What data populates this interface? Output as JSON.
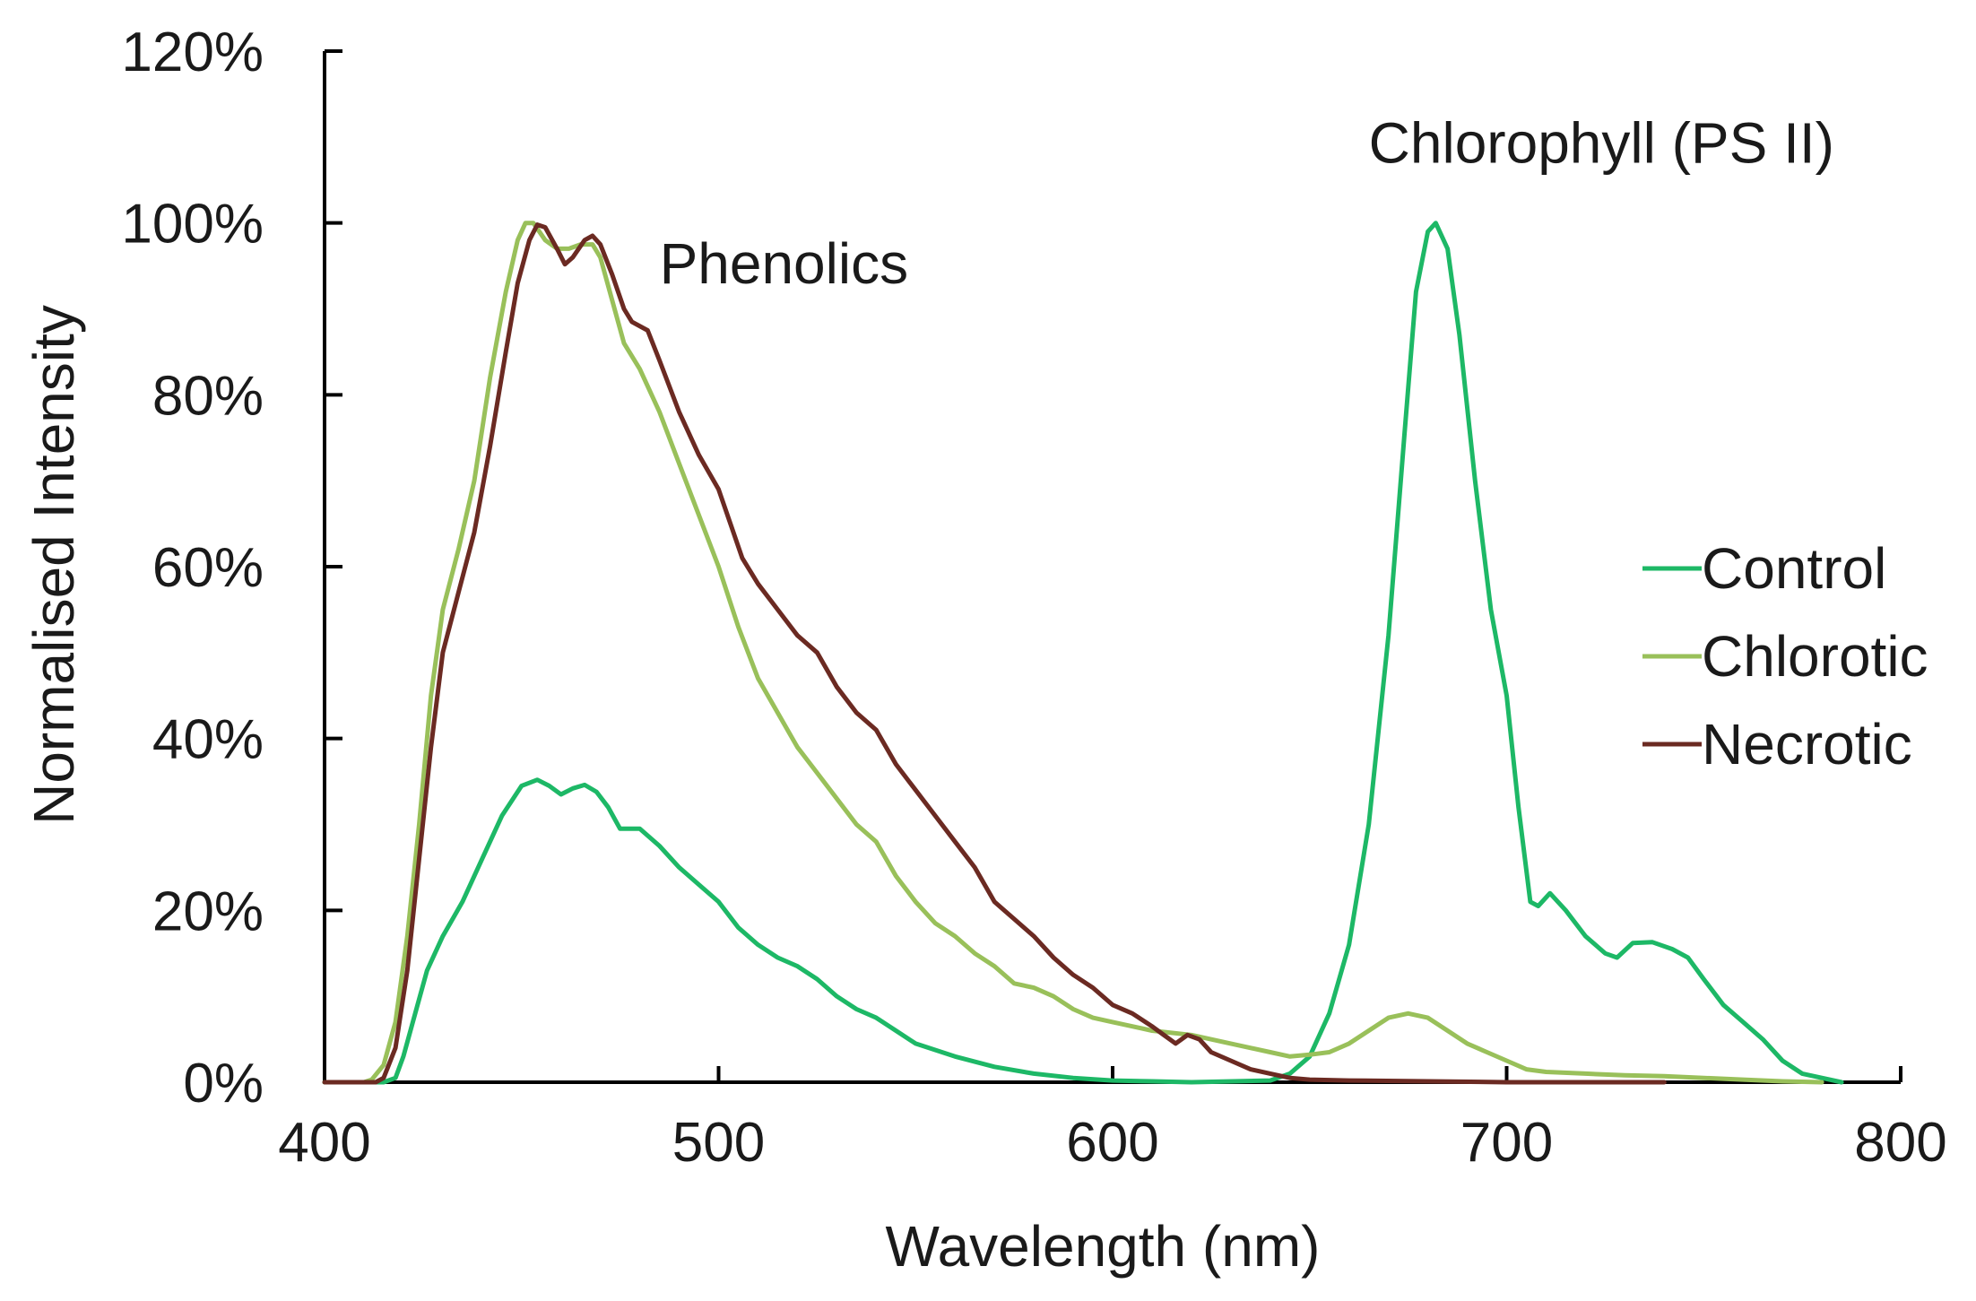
{
  "chart_data": {
    "type": "line",
    "title": "",
    "xlabel": "Wavelength (nm)",
    "ylabel": "Normalised Intensity",
    "xlim": [
      400,
      800
    ],
    "ylim": [
      0,
      120
    ],
    "grid": false,
    "x_ticks": [
      400,
      500,
      600,
      700,
      800
    ],
    "y_ticks": [
      0,
      20,
      40,
      60,
      80,
      100,
      120
    ],
    "x_tick_labels": [
      "400",
      "500",
      "600",
      "700",
      "800"
    ],
    "y_tick_labels": [
      "0%",
      "20%",
      "40%",
      "60%",
      "80%",
      "100%",
      "120%"
    ],
    "legend_position": "right",
    "annotations": [
      {
        "text": "Phenolics",
        "x": 485,
        "y": 93
      },
      {
        "text": "Chlorophyll (PS II)",
        "x": 665,
        "y": 107
      }
    ],
    "series": [
      {
        "name": "Control",
        "color": "#1db866",
        "points": [
          [
            400,
            0
          ],
          [
            415,
            0
          ],
          [
            418,
            0.5
          ],
          [
            420,
            3
          ],
          [
            423,
            8
          ],
          [
            426,
            13
          ],
          [
            430,
            17
          ],
          [
            435,
            21
          ],
          [
            440,
            26
          ],
          [
            445,
            31
          ],
          [
            450,
            34.5
          ],
          [
            454,
            35.2
          ],
          [
            457,
            34.5
          ],
          [
            460,
            33.5
          ],
          [
            463,
            34.2
          ],
          [
            466,
            34.6
          ],
          [
            469,
            33.8
          ],
          [
            472,
            32
          ],
          [
            475,
            29.5
          ],
          [
            480,
            29.5
          ],
          [
            485,
            27.5
          ],
          [
            490,
            25
          ],
          [
            495,
            23
          ],
          [
            500,
            21
          ],
          [
            505,
            18
          ],
          [
            510,
            16
          ],
          [
            515,
            14.5
          ],
          [
            520,
            13.5
          ],
          [
            525,
            12
          ],
          [
            530,
            10
          ],
          [
            535,
            8.5
          ],
          [
            540,
            7.5
          ],
          [
            545,
            6
          ],
          [
            550,
            4.5
          ],
          [
            560,
            3
          ],
          [
            570,
            1.8
          ],
          [
            580,
            1
          ],
          [
            590,
            0.5
          ],
          [
            600,
            0.2
          ],
          [
            610,
            0.1
          ],
          [
            620,
            0
          ],
          [
            640,
            0.2
          ],
          [
            645,
            1
          ],
          [
            650,
            3
          ],
          [
            655,
            8
          ],
          [
            660,
            16
          ],
          [
            665,
            30
          ],
          [
            670,
            52
          ],
          [
            674,
            75
          ],
          [
            677,
            92
          ],
          [
            680,
            99
          ],
          [
            682,
            100
          ],
          [
            685,
            97
          ],
          [
            688,
            87
          ],
          [
            692,
            70
          ],
          [
            696,
            55
          ],
          [
            700,
            45
          ],
          [
            703,
            32
          ],
          [
            706,
            21
          ],
          [
            708,
            20.5
          ],
          [
            711,
            22
          ],
          [
            715,
            20
          ],
          [
            720,
            17
          ],
          [
            725,
            15
          ],
          [
            728,
            14.5
          ],
          [
            732,
            16.2
          ],
          [
            737,
            16.3
          ],
          [
            742,
            15.5
          ],
          [
            746,
            14.5
          ],
          [
            750,
            12
          ],
          [
            755,
            9
          ],
          [
            760,
            7
          ],
          [
            765,
            5
          ],
          [
            770,
            2.5
          ],
          [
            775,
            1
          ],
          [
            780,
            0.5
          ],
          [
            785,
            0
          ]
        ]
      },
      {
        "name": "Chlorotic",
        "color": "#99c05a",
        "points": [
          [
            400,
            0
          ],
          [
            410,
            0
          ],
          [
            412,
            0.3
          ],
          [
            415,
            2
          ],
          [
            418,
            7
          ],
          [
            421,
            17
          ],
          [
            424,
            30
          ],
          [
            427,
            45
          ],
          [
            430,
            55
          ],
          [
            434,
            62
          ],
          [
            438,
            70
          ],
          [
            442,
            82
          ],
          [
            446,
            92
          ],
          [
            449,
            98
          ],
          [
            451,
            100
          ],
          [
            453,
            100
          ],
          [
            456,
            98
          ],
          [
            459,
            97
          ],
          [
            462,
            97
          ],
          [
            465,
            97.5
          ],
          [
            468,
            97.5
          ],
          [
            470,
            96
          ],
          [
            473,
            91
          ],
          [
            476,
            86
          ],
          [
            480,
            83
          ],
          [
            485,
            78
          ],
          [
            490,
            72
          ],
          [
            495,
            66
          ],
          [
            500,
            60
          ],
          [
            505,
            53
          ],
          [
            510,
            47
          ],
          [
            515,
            43
          ],
          [
            520,
            39
          ],
          [
            525,
            36
          ],
          [
            530,
            33
          ],
          [
            535,
            30
          ],
          [
            540,
            28
          ],
          [
            545,
            24
          ],
          [
            550,
            21
          ],
          [
            555,
            18.5
          ],
          [
            560,
            17
          ],
          [
            565,
            15
          ],
          [
            570,
            13.5
          ],
          [
            575,
            11.5
          ],
          [
            580,
            11
          ],
          [
            585,
            10
          ],
          [
            590,
            8.5
          ],
          [
            595,
            7.5
          ],
          [
            600,
            7
          ],
          [
            610,
            6
          ],
          [
            620,
            5.5
          ],
          [
            630,
            4.5
          ],
          [
            640,
            3.5
          ],
          [
            645,
            3
          ],
          [
            650,
            3.2
          ],
          [
            655,
            3.5
          ],
          [
            660,
            4.5
          ],
          [
            665,
            6
          ],
          [
            670,
            7.5
          ],
          [
            675,
            8
          ],
          [
            680,
            7.5
          ],
          [
            685,
            6
          ],
          [
            690,
            4.5
          ],
          [
            695,
            3.5
          ],
          [
            700,
            2.5
          ],
          [
            705,
            1.5
          ],
          [
            710,
            1.2
          ],
          [
            720,
            1
          ],
          [
            730,
            0.8
          ],
          [
            740,
            0.7
          ],
          [
            750,
            0.5
          ],
          [
            760,
            0.3
          ],
          [
            770,
            0.1
          ],
          [
            780,
            0
          ]
        ]
      },
      {
        "name": "Necrotic",
        "color": "#6b2a22",
        "points": [
          [
            400,
            0
          ],
          [
            413,
            0
          ],
          [
            415,
            0.5
          ],
          [
            418,
            4
          ],
          [
            421,
            13
          ],
          [
            424,
            26
          ],
          [
            427,
            39
          ],
          [
            430,
            50
          ],
          [
            434,
            57
          ],
          [
            438,
            64
          ],
          [
            442,
            74
          ],
          [
            446,
            85
          ],
          [
            449,
            93
          ],
          [
            452,
            98
          ],
          [
            454,
            99.8
          ],
          [
            456,
            99.5
          ],
          [
            459,
            97
          ],
          [
            461,
            95.2
          ],
          [
            463,
            96
          ],
          [
            466,
            98
          ],
          [
            468,
            98.5
          ],
          [
            470,
            97.5
          ],
          [
            473,
            94
          ],
          [
            476,
            90
          ],
          [
            478,
            88.5
          ],
          [
            482,
            87.5
          ],
          [
            485,
            84
          ],
          [
            490,
            78
          ],
          [
            495,
            73
          ],
          [
            500,
            69
          ],
          [
            503,
            65
          ],
          [
            506,
            61
          ],
          [
            510,
            58
          ],
          [
            515,
            55
          ],
          [
            520,
            52
          ],
          [
            525,
            50
          ],
          [
            530,
            46
          ],
          [
            535,
            43
          ],
          [
            540,
            41
          ],
          [
            545,
            37
          ],
          [
            550,
            34
          ],
          [
            555,
            31
          ],
          [
            560,
            28
          ],
          [
            565,
            25
          ],
          [
            570,
            21
          ],
          [
            575,
            19
          ],
          [
            580,
            17
          ],
          [
            585,
            14.5
          ],
          [
            590,
            12.5
          ],
          [
            595,
            11
          ],
          [
            600,
            9
          ],
          [
            605,
            8
          ],
          [
            610,
            6.5
          ],
          [
            613,
            5.5
          ],
          [
            616,
            4.5
          ],
          [
            619,
            5.5
          ],
          [
            622,
            5
          ],
          [
            625,
            3.5
          ],
          [
            630,
            2.5
          ],
          [
            635,
            1.5
          ],
          [
            640,
            1
          ],
          [
            645,
            0.5
          ],
          [
            650,
            0.3
          ],
          [
            660,
            0.2
          ],
          [
            680,
            0.1
          ],
          [
            700,
            0
          ],
          [
            740,
            0
          ]
        ]
      }
    ]
  }
}
